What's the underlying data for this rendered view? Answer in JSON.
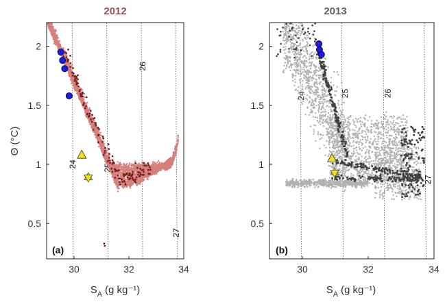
{
  "chart_data": [
    {
      "type": "scatter",
      "panel_tag": "(a)",
      "title": "2012",
      "title_color": "#a05050",
      "xlabel_main": "S",
      "xlabel_sub": "A",
      "xlabel_unit": "(g kg⁻¹)",
      "ylabel": "Θ (°C)",
      "xlim": [
        29,
        34
      ],
      "ylim": [
        0.2,
        2.2
      ],
      "xticks": [
        "30",
        "32",
        "34"
      ],
      "yticks": [
        "0.5",
        "1",
        "1.5",
        "2"
      ],
      "colors": {
        "cloud": "#d4807c",
        "dark": "#7a2020",
        "circle": "#1a1ae0",
        "triangle": "#f0e020",
        "star": "#f0e020"
      },
      "isopycnals": [
        {
          "label": "24",
          "s_low": 29.97,
          "s_high": 29.93,
          "label_s": 30.05,
          "label_t": 1.0
        },
        {
          "label": "25",
          "s_low": 31.24,
          "s_high": 31.19,
          "label_s": 31.32,
          "label_t": 0.97
        },
        {
          "label": "26",
          "s_low": 32.5,
          "s_high": 32.45,
          "label_s": 32.6,
          "label_t": 1.83
        },
        {
          "label": "27",
          "s_low": 33.76,
          "s_high": 33.7,
          "label_s": 33.82,
          "label_t": 0.42
        }
      ],
      "circles": [
        [
          29.52,
          1.95
        ],
        [
          29.58,
          1.88
        ],
        [
          29.66,
          1.81
        ],
        [
          29.82,
          1.58
        ]
      ],
      "triangles": [
        [
          30.28,
          1.08
        ]
      ],
      "stars": [
        [
          30.52,
          0.89
        ]
      ]
    },
    {
      "type": "scatter",
      "panel_tag": "(b)",
      "title": "2013",
      "title_color": "#606060",
      "xlabel_main": "S",
      "xlabel_sub": "A",
      "xlabel_unit": "(g kg⁻¹)",
      "ylabel": "",
      "xlim": [
        29,
        34
      ],
      "ylim": [
        0.2,
        2.2
      ],
      "xticks": [
        "30",
        "32",
        "34"
      ],
      "yticks": [
        "0.5",
        "1",
        "1.5",
        "2"
      ],
      "colors": {
        "cloud": "#b0b0b0",
        "dark": "#404040",
        "circle": "#1a1ae0",
        "triangle": "#f0e020",
        "star": "#f0e020"
      },
      "isopycnals": [
        {
          "label": "24",
          "s_low": 29.97,
          "s_high": 29.93,
          "label_s": 30.05,
          "label_t": 1.58
        },
        {
          "label": "25",
          "s_low": 31.24,
          "s_high": 31.19,
          "label_s": 31.38,
          "label_t": 1.6
        },
        {
          "label": "26",
          "s_low": 32.5,
          "s_high": 32.45,
          "label_s": 32.68,
          "label_t": 1.6
        },
        {
          "label": "27",
          "s_low": 33.76,
          "s_high": 33.7,
          "label_s": 33.9,
          "label_t": 0.87
        }
      ],
      "circles": [
        [
          30.5,
          2.02
        ],
        [
          30.52,
          1.97
        ],
        [
          30.58,
          1.93
        ]
      ],
      "triangles": [
        [
          30.9,
          1.05
        ]
      ],
      "stars": [
        [
          30.98,
          0.93
        ]
      ]
    }
  ]
}
